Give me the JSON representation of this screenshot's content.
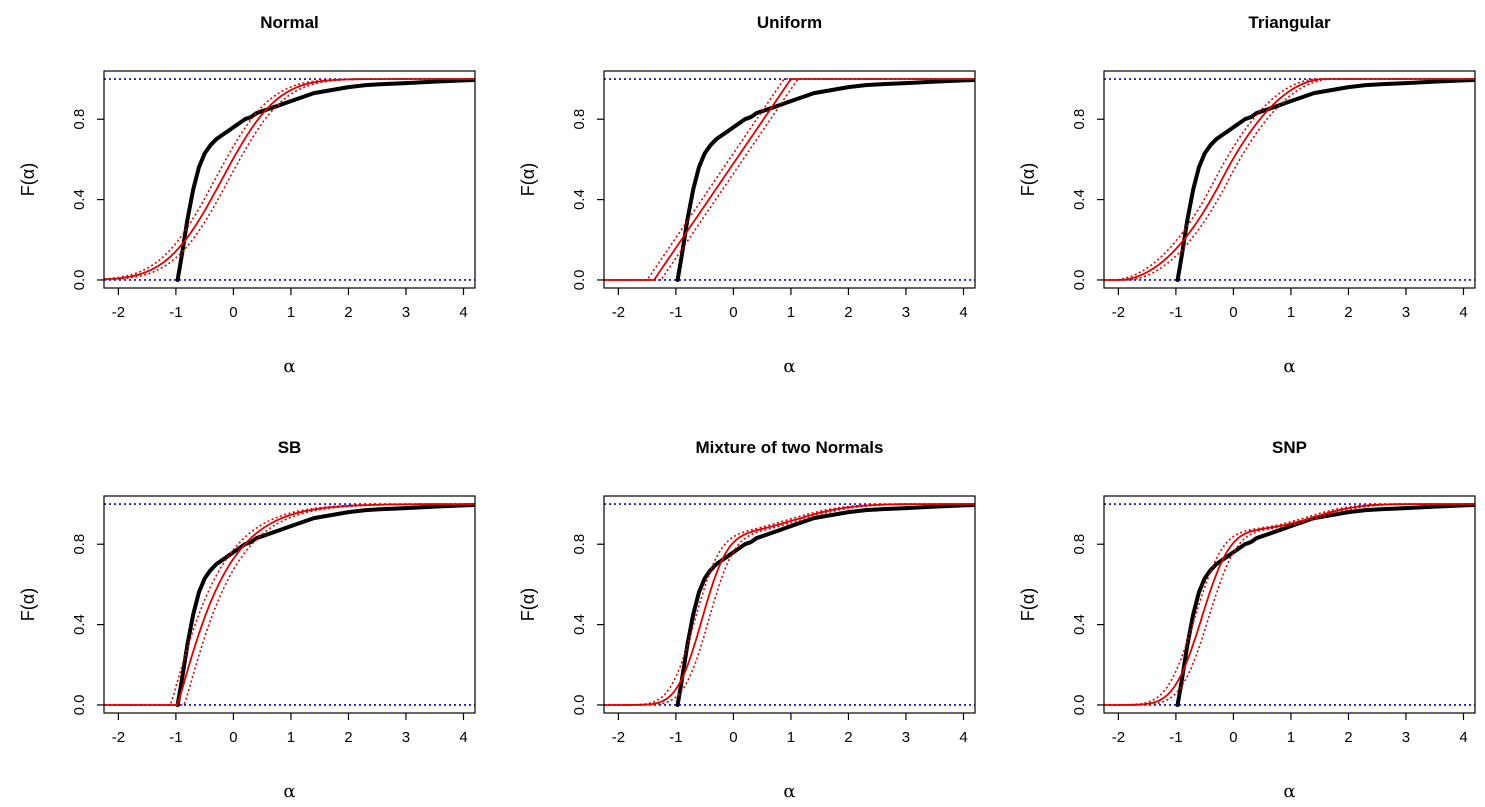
{
  "colors": {
    "empirical": "#000000",
    "fit": "#e00000",
    "bounds": "#0000cc"
  },
  "chart_data": [
    {
      "type": "line",
      "title": "Normal",
      "xlabel": "α",
      "ylabel": "F(α)",
      "xlim": [
        -2.25,
        4.2
      ],
      "ylim": [
        -0.04,
        1.04
      ],
      "xticks": [
        "-2",
        "-1",
        "0",
        "1",
        "2",
        "3",
        "4"
      ],
      "yticks": [
        "0.0",
        "0.4",
        "0.8"
      ],
      "fit": {
        "dist": "normal",
        "params": [
          -0.2,
          0.75
        ],
        "band": 0.12
      },
      "series": [
        {
          "role": "empirical",
          "x": [
            -0.97,
            -0.9,
            -0.8,
            -0.7,
            -0.6,
            -0.5,
            -0.4,
            -0.3,
            -0.2,
            -0.1,
            0,
            0.1,
            0.2,
            0.3,
            0.4,
            0.5,
            0.6,
            0.7,
            0.8,
            0.9,
            1.0,
            1.2,
            1.4,
            1.6,
            1.8,
            2.0,
            2.3,
            2.6,
            3.0,
            3.5,
            4.0,
            4.2
          ],
          "y": [
            0,
            0.12,
            0.3,
            0.45,
            0.56,
            0.63,
            0.67,
            0.7,
            0.72,
            0.74,
            0.76,
            0.78,
            0.8,
            0.81,
            0.83,
            0.84,
            0.85,
            0.86,
            0.87,
            0.88,
            0.89,
            0.91,
            0.93,
            0.94,
            0.95,
            0.96,
            0.97,
            0.975,
            0.98,
            0.987,
            0.993,
            0.995
          ]
        }
      ]
    },
    {
      "type": "line",
      "title": "Uniform",
      "xlabel": "α",
      "ylabel": "F(α)",
      "xlim": [
        -2.25,
        4.2
      ],
      "ylim": [
        -0.04,
        1.04
      ],
      "xticks": [
        "-2",
        "-1",
        "0",
        "1",
        "2",
        "3",
        "4"
      ],
      "yticks": [
        "0.0",
        "0.4",
        "0.8"
      ],
      "fit": {
        "dist": "uniform",
        "params": [
          -1.38,
          1.0
        ],
        "band": 0.12
      },
      "series": [
        {
          "role": "empirical",
          "x": [
            -0.97,
            -0.9,
            -0.8,
            -0.7,
            -0.6,
            -0.5,
            -0.4,
            -0.3,
            -0.2,
            -0.1,
            0,
            0.1,
            0.2,
            0.3,
            0.4,
            0.5,
            0.6,
            0.7,
            0.8,
            0.9,
            1.0,
            1.2,
            1.4,
            1.6,
            1.8,
            2.0,
            2.3,
            2.6,
            3.0,
            3.5,
            4.0,
            4.2
          ],
          "y": [
            0,
            0.12,
            0.3,
            0.45,
            0.56,
            0.63,
            0.67,
            0.7,
            0.72,
            0.74,
            0.76,
            0.78,
            0.8,
            0.81,
            0.83,
            0.84,
            0.85,
            0.86,
            0.87,
            0.88,
            0.89,
            0.91,
            0.93,
            0.94,
            0.95,
            0.96,
            0.97,
            0.975,
            0.98,
            0.987,
            0.993,
            0.995
          ]
        }
      ]
    },
    {
      "type": "line",
      "title": "Triangular",
      "xlabel": "α",
      "ylabel": "F(α)",
      "xlim": [
        -2.25,
        4.2
      ],
      "ylim": [
        -0.04,
        1.04
      ],
      "xticks": [
        "-2",
        "-1",
        "0",
        "1",
        "2",
        "3",
        "4"
      ],
      "yticks": [
        "0.0",
        "0.4",
        "0.8"
      ],
      "fit": {
        "dist": "triangular",
        "params": [
          -2.0,
          -0.2,
          1.6
        ],
        "band": 0.12
      },
      "series": [
        {
          "role": "empirical",
          "x": [
            -0.97,
            -0.9,
            -0.8,
            -0.7,
            -0.6,
            -0.5,
            -0.4,
            -0.3,
            -0.2,
            -0.1,
            0,
            0.1,
            0.2,
            0.3,
            0.4,
            0.5,
            0.6,
            0.7,
            0.8,
            0.9,
            1.0,
            1.2,
            1.4,
            1.6,
            1.8,
            2.0,
            2.3,
            2.6,
            3.0,
            3.5,
            4.0,
            4.2
          ],
          "y": [
            0,
            0.12,
            0.3,
            0.45,
            0.56,
            0.63,
            0.67,
            0.7,
            0.72,
            0.74,
            0.76,
            0.78,
            0.8,
            0.81,
            0.83,
            0.84,
            0.85,
            0.86,
            0.87,
            0.88,
            0.89,
            0.91,
            0.93,
            0.94,
            0.95,
            0.96,
            0.97,
            0.975,
            0.98,
            0.987,
            0.993,
            0.995
          ]
        }
      ]
    },
    {
      "type": "line",
      "title": "SB",
      "xlabel": "α",
      "ylabel": "F(α)",
      "xlim": [
        -2.25,
        4.2
      ],
      "ylim": [
        -0.04,
        1.04
      ],
      "xticks": [
        "-2",
        "-1",
        "0",
        "1",
        "2",
        "3",
        "4"
      ],
      "yticks": [
        "0.0",
        "0.4",
        "0.8"
      ],
      "fit": {
        "dist": "sb",
        "params": [
          -0.98,
          0.78
        ],
        "band": 0.12
      },
      "series": [
        {
          "role": "empirical",
          "x": [
            -0.97,
            -0.9,
            -0.8,
            -0.7,
            -0.6,
            -0.5,
            -0.4,
            -0.3,
            -0.2,
            -0.1,
            0,
            0.1,
            0.2,
            0.3,
            0.4,
            0.5,
            0.6,
            0.7,
            0.8,
            0.9,
            1.0,
            1.2,
            1.4,
            1.6,
            1.8,
            2.0,
            2.3,
            2.6,
            3.0,
            3.5,
            4.0,
            4.2
          ],
          "y": [
            0,
            0.12,
            0.3,
            0.45,
            0.56,
            0.63,
            0.67,
            0.7,
            0.72,
            0.74,
            0.76,
            0.78,
            0.8,
            0.81,
            0.83,
            0.84,
            0.85,
            0.86,
            0.87,
            0.88,
            0.89,
            0.91,
            0.93,
            0.94,
            0.95,
            0.96,
            0.97,
            0.975,
            0.98,
            0.987,
            0.993,
            0.995
          ]
        }
      ]
    },
    {
      "type": "line",
      "title": "Mixture of two Normals",
      "xlabel": "α",
      "ylabel": "F(α)",
      "xlim": [
        -2.25,
        4.2
      ],
      "ylim": [
        -0.04,
        1.04
      ],
      "xticks": [
        "-2",
        "-1",
        "0",
        "1",
        "2",
        "3",
        "4"
      ],
      "yticks": [
        "0.0",
        "0.4",
        "0.8"
      ],
      "fit": {
        "dist": "mixture",
        "params": [
          0.84,
          -0.55,
          0.34,
          1.05,
          0.75
        ],
        "band": 0.12
      },
      "series": [
        {
          "role": "empirical",
          "x": [
            -0.97,
            -0.9,
            -0.8,
            -0.7,
            -0.6,
            -0.5,
            -0.4,
            -0.3,
            -0.2,
            -0.1,
            0,
            0.1,
            0.2,
            0.3,
            0.4,
            0.5,
            0.6,
            0.7,
            0.8,
            0.9,
            1.0,
            1.2,
            1.4,
            1.6,
            1.8,
            2.0,
            2.3,
            2.6,
            3.0,
            3.5,
            4.0,
            4.2
          ],
          "y": [
            0,
            0.12,
            0.3,
            0.45,
            0.56,
            0.63,
            0.67,
            0.7,
            0.72,
            0.74,
            0.76,
            0.78,
            0.8,
            0.81,
            0.83,
            0.84,
            0.85,
            0.86,
            0.87,
            0.88,
            0.89,
            0.91,
            0.93,
            0.94,
            0.95,
            0.96,
            0.97,
            0.975,
            0.98,
            0.987,
            0.993,
            0.995
          ]
        }
      ]
    },
    {
      "type": "line",
      "title": "SNP",
      "xlabel": "α",
      "ylabel": "F(α)",
      "xlim": [
        -2.25,
        4.2
      ],
      "ylim": [
        -0.04,
        1.04
      ],
      "xticks": [
        "-2",
        "-1",
        "0",
        "1",
        "2",
        "3",
        "4"
      ],
      "yticks": [
        "0.0",
        "0.4",
        "0.8"
      ],
      "fit": {
        "dist": "mixture",
        "params": [
          0.87,
          -0.55,
          0.38,
          1.4,
          0.6
        ],
        "band": 0.12
      },
      "series": [
        {
          "role": "empirical",
          "x": [
            -0.97,
            -0.9,
            -0.8,
            -0.7,
            -0.6,
            -0.5,
            -0.4,
            -0.3,
            -0.2,
            -0.1,
            0,
            0.1,
            0.2,
            0.3,
            0.4,
            0.5,
            0.6,
            0.7,
            0.8,
            0.9,
            1.0,
            1.2,
            1.4,
            1.6,
            1.8,
            2.0,
            2.3,
            2.6,
            3.0,
            3.5,
            4.0,
            4.2
          ],
          "y": [
            0,
            0.12,
            0.3,
            0.45,
            0.56,
            0.63,
            0.67,
            0.7,
            0.72,
            0.74,
            0.76,
            0.78,
            0.8,
            0.81,
            0.83,
            0.84,
            0.85,
            0.86,
            0.87,
            0.88,
            0.89,
            0.91,
            0.93,
            0.94,
            0.95,
            0.96,
            0.97,
            0.975,
            0.98,
            0.987,
            0.993,
            0.995
          ]
        }
      ]
    }
  ]
}
